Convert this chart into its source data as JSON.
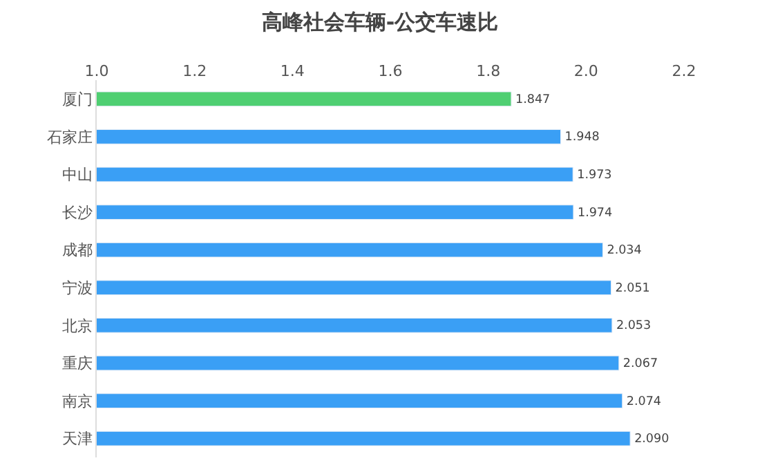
{
  "chart_data": {
    "type": "bar",
    "orientation": "horizontal",
    "title": "高峰社会车辆-公交车速比",
    "categories": [
      "厦门",
      "石家庄",
      "中山",
      "长沙",
      "成都",
      "宁波",
      "北京",
      "重庆",
      "南京",
      "天津"
    ],
    "values": [
      1.847,
      1.948,
      1.973,
      1.974,
      2.034,
      2.051,
      2.053,
      2.067,
      2.074,
      2.09
    ],
    "colors": [
      "#4fcf72",
      "#3a9ff5",
      "#3a9ff5",
      "#3a9ff5",
      "#3a9ff5",
      "#3a9ff5",
      "#3a9ff5",
      "#3a9ff5",
      "#3a9ff5",
      "#3a9ff5"
    ],
    "xlim": [
      1.0,
      2.2
    ],
    "xticks": [
      {
        "value": 1.0,
        "label": "1.0"
      },
      {
        "value": 1.2,
        "label": "1.2"
      },
      {
        "value": 1.4,
        "label": "1.4"
      },
      {
        "value": 1.6,
        "label": "1.6"
      },
      {
        "value": 1.8,
        "label": "1.8"
      },
      {
        "value": 2.0,
        "label": "2.0"
      },
      {
        "value": 2.2,
        "label": "2.2"
      }
    ],
    "value_labels": [
      "1.847",
      "1.948",
      "1.973",
      "1.974",
      "2.034",
      "2.051",
      "2.053",
      "2.067",
      "2.074",
      "2.090"
    ]
  }
}
